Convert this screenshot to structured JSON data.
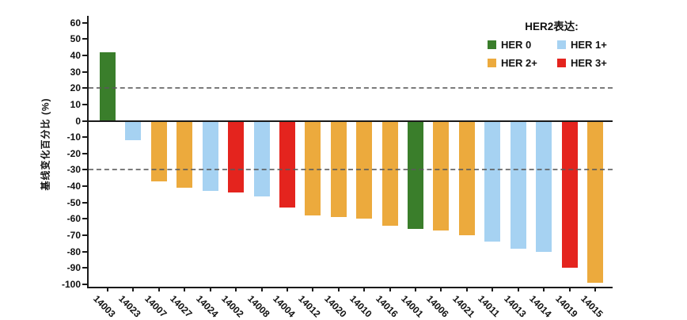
{
  "chart_data": {
    "type": "bar",
    "title": "",
    "ylabel": "基线变化百分比 (%)",
    "xlabel": "",
    "ylim": [
      -100,
      60
    ],
    "yticks": [
      60,
      50,
      40,
      30,
      20,
      10,
      0,
      -10,
      -20,
      -30,
      -40,
      -50,
      -60,
      -70,
      -80,
      -90,
      -100
    ],
    "reference_lines": [
      20,
      -30
    ],
    "grid": false,
    "legend_position": "top-right",
    "categories": [
      "14003",
      "14023",
      "14007",
      "14027",
      "14024",
      "14002",
      "14008",
      "14004",
      "14012",
      "14020",
      "14010",
      "14016",
      "14001",
      "14006",
      "14021",
      "14011",
      "14013",
      "14014",
      "14019",
      "14015"
    ],
    "values": [
      42,
      -12,
      -37,
      -41,
      -43,
      -44,
      -46,
      -53,
      -58,
      -59,
      -60,
      -64,
      -66,
      -67,
      -70,
      -74,
      -78,
      -80,
      -90,
      -99
    ],
    "her2_expression": [
      "HER 0",
      "HER 1+",
      "HER 2+",
      "HER 2+",
      "HER 1+",
      "HER 3+",
      "HER 1+",
      "HER 3+",
      "HER 2+",
      "HER 2+",
      "HER 2+",
      "HER 2+",
      "HER 0",
      "HER 2+",
      "HER 2+",
      "HER 1+",
      "HER 1+",
      "HER 1+",
      "HER 3+",
      "HER 2+"
    ],
    "legend": {
      "title": "HER2表达:",
      "items": [
        {
          "label": "HER 0",
          "color": "#3a7e2b"
        },
        {
          "label": "HER 1+",
          "color": "#a6d2f2"
        },
        {
          "label": "HER 2+",
          "color": "#ecaa3d"
        },
        {
          "label": "HER 3+",
          "color": "#e4241e"
        }
      ]
    },
    "axis_color": "#1a1a1a",
    "reference_line_color": "#5a5a5a"
  }
}
